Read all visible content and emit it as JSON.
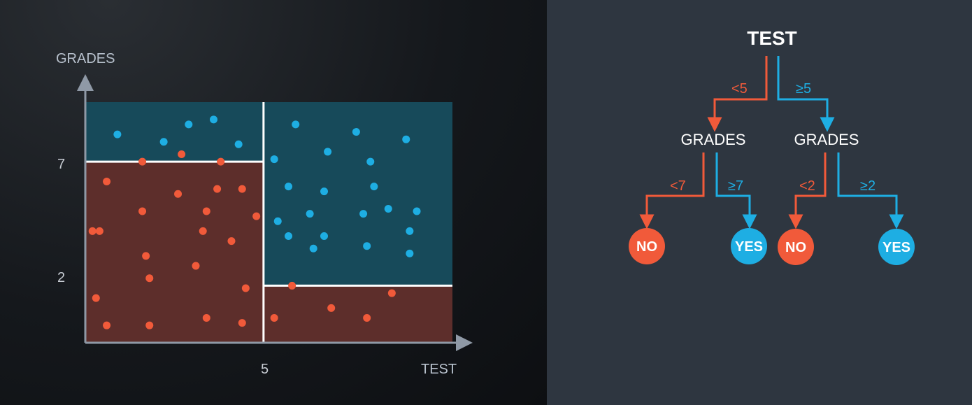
{
  "colors": {
    "no": "#f15a3a",
    "yes": "#1eaee3",
    "region_no": "#5d2e2b",
    "region_yes": "#174a5a",
    "axis": "#8f99a6",
    "divider": "#ffffff"
  },
  "plot": {
    "xlabel": "TEST",
    "ylabel": "GRADES",
    "x_ticks": [
      {
        "value": 5,
        "label": "5"
      }
    ],
    "y_ticks": [
      {
        "value": 7,
        "label": "7"
      },
      {
        "value": 2,
        "label": "2"
      }
    ],
    "xlim": [
      0,
      10.3
    ],
    "ylim": [
      -0.3,
      9.4
    ],
    "split_test": 5,
    "split_grades_low_test": 7,
    "split_grades_high_test": 2
  },
  "chart_data": {
    "type": "scatter",
    "xlabel": "TEST",
    "ylabel": "GRADES",
    "series": [
      {
        "name": "NO",
        "points": [
          [
            0.6,
            6.2
          ],
          [
            1.6,
            7.0
          ],
          [
            2.7,
            7.3
          ],
          [
            3.8,
            7.0
          ],
          [
            0.4,
            4.2
          ],
          [
            1.6,
            5.0
          ],
          [
            2.6,
            5.7
          ],
          [
            3.7,
            5.9
          ],
          [
            4.4,
            5.9
          ],
          [
            3.4,
            5.0
          ],
          [
            0.2,
            4.2
          ],
          [
            1.7,
            3.2
          ],
          [
            3.3,
            4.2
          ],
          [
            4.1,
            3.8
          ],
          [
            4.8,
            4.8
          ],
          [
            1.8,
            2.3
          ],
          [
            3.1,
            2.8
          ],
          [
            0.3,
            1.5
          ],
          [
            4.5,
            1.9
          ],
          [
            0.6,
            0.4
          ],
          [
            1.8,
            0.4
          ],
          [
            3.4,
            0.7
          ],
          [
            4.4,
            0.5
          ],
          [
            5.8,
            2.0
          ],
          [
            6.9,
            1.1
          ],
          [
            7.9,
            0.7
          ],
          [
            8.6,
            1.7
          ],
          [
            5.3,
            0.7
          ]
        ]
      },
      {
        "name": "YES",
        "points": [
          [
            0.9,
            8.1
          ],
          [
            2.2,
            7.8
          ],
          [
            2.9,
            8.5
          ],
          [
            3.6,
            8.7
          ],
          [
            4.3,
            7.7
          ],
          [
            5.9,
            8.5
          ],
          [
            7.6,
            8.2
          ],
          [
            9.0,
            7.9
          ],
          [
            6.8,
            7.4
          ],
          [
            8.0,
            7.0
          ],
          [
            5.3,
            7.1
          ],
          [
            5.7,
            6.0
          ],
          [
            6.7,
            5.8
          ],
          [
            8.1,
            6.0
          ],
          [
            6.3,
            4.9
          ],
          [
            7.8,
            4.9
          ],
          [
            8.5,
            5.1
          ],
          [
            9.3,
            5.0
          ],
          [
            5.4,
            4.6
          ],
          [
            5.7,
            4.0
          ],
          [
            6.7,
            4.0
          ],
          [
            9.1,
            4.2
          ],
          [
            6.4,
            3.5
          ],
          [
            7.9,
            3.6
          ],
          [
            9.1,
            3.3
          ]
        ]
      }
    ],
    "regions": [
      {
        "label": "YES",
        "x": [
          0,
          5
        ],
        "y": [
          7,
          9.4
        ]
      },
      {
        "label": "NO",
        "x": [
          0,
          5
        ],
        "y": [
          -0.3,
          7
        ]
      },
      {
        "label": "YES",
        "x": [
          5,
          10.3
        ],
        "y": [
          2,
          9.4
        ]
      },
      {
        "label": "NO",
        "x": [
          5,
          10.3
        ],
        "y": [
          -0.3,
          2
        ]
      }
    ]
  },
  "tree": {
    "root": "TEST",
    "left": {
      "edge": "<5",
      "node": "GRADES",
      "left": {
        "edge": "<7",
        "leaf": "NO"
      },
      "right": {
        "edge": "≥7",
        "leaf": "YES"
      }
    },
    "right": {
      "edge": "≥5",
      "node": "GRADES",
      "left": {
        "edge": "<2",
        "leaf": "NO"
      },
      "right": {
        "edge": "≥2",
        "leaf": "YES"
      }
    }
  }
}
